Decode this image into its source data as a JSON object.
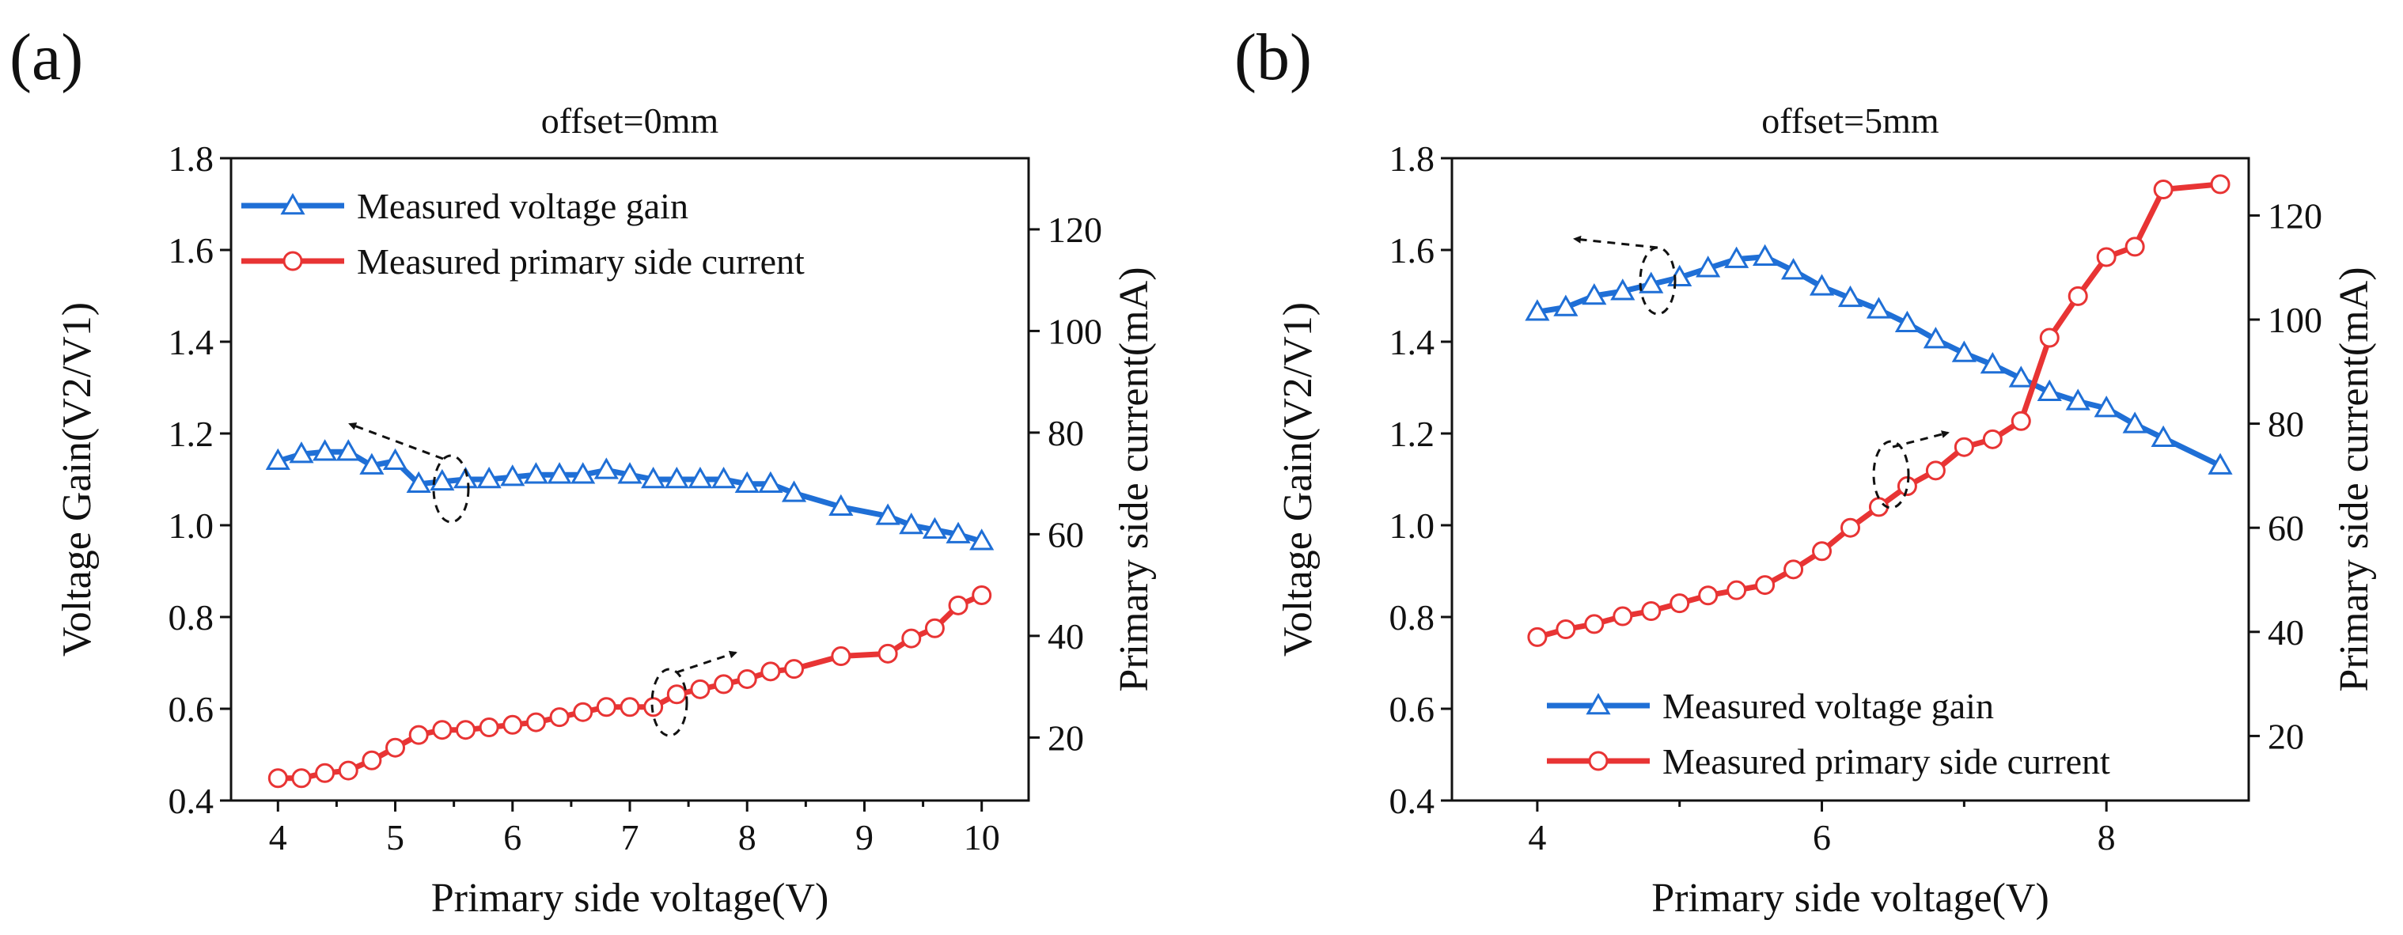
{
  "chart_data": [
    {
      "type": "line",
      "panel_label": "(a)",
      "title": "offset=0mm",
      "xlabel": "Primary side voltage(V)",
      "ylabel_left": "Voltage Gain(V2/V1)",
      "ylabel_right": "Primary side current(mA)",
      "xlim": [
        3.6,
        10.4
      ],
      "ylim_left": [
        0.4,
        1.8
      ],
      "ylim_right": [
        7.6,
        134
      ],
      "xticks": [
        4,
        5,
        6,
        7,
        8,
        9,
        10
      ],
      "yticks_left": [
        0.4,
        0.6,
        0.8,
        1.0,
        1.2,
        1.4,
        1.6,
        1.8
      ],
      "yticks_right": [
        20,
        40,
        60,
        80,
        100,
        120
      ],
      "legend_position": "top-left",
      "series": [
        {
          "name": "Measured voltage gain",
          "axis": "left",
          "color": "#1f6fd6",
          "marker": "triangle",
          "x": [
            4.0,
            4.2,
            4.4,
            4.6,
            4.8,
            5.0,
            5.2,
            5.4,
            5.6,
            5.8,
            6.0,
            6.2,
            6.4,
            6.6,
            6.8,
            7.0,
            7.2,
            7.4,
            7.6,
            7.8,
            8.0,
            8.2,
            8.4,
            8.8,
            9.2,
            9.4,
            9.6,
            9.8,
            10.0
          ],
          "y": [
            1.14,
            1.155,
            1.16,
            1.16,
            1.13,
            1.14,
            1.09,
            1.095,
            1.1,
            1.1,
            1.105,
            1.11,
            1.11,
            1.11,
            1.12,
            1.11,
            1.1,
            1.1,
            1.1,
            1.1,
            1.09,
            1.09,
            1.07,
            1.04,
            1.02,
            1.0,
            0.99,
            0.98,
            0.965
          ]
        },
        {
          "name": "Measured primary side current",
          "axis": "right",
          "color": "#e83434",
          "marker": "circle",
          "x": [
            4.0,
            4.2,
            4.4,
            4.6,
            4.8,
            5.0,
            5.2,
            5.4,
            5.6,
            5.8,
            6.0,
            6.2,
            6.4,
            6.6,
            6.8,
            7.0,
            7.2,
            7.4,
            7.6,
            7.8,
            8.0,
            8.2,
            8.4,
            8.8,
            9.2,
            9.4,
            9.6,
            9.8,
            10.0
          ],
          "y": [
            12,
            12,
            13,
            13.5,
            15.5,
            18,
            20.5,
            21.5,
            21.5,
            22,
            22.5,
            23,
            24,
            25,
            26,
            26,
            26,
            28.5,
            29.5,
            30.5,
            31.5,
            33,
            33.5,
            36,
            36.5,
            39.5,
            41.5,
            46,
            48
          ]
        }
      ],
      "annotations": [
        "dashed ellipse with arrow pointing left near x=5.5 (gain axis)",
        "dashed ellipse with arrow pointing right near x=7.3 (current axis)"
      ]
    },
    {
      "type": "line",
      "panel_label": "(b)",
      "title": "offset=5mm",
      "xlabel": "Primary side voltage(V)",
      "ylabel_left": "Voltage Gain(V2/V1)",
      "ylabel_right": "Primary side current(mA)",
      "xlim": [
        3.4,
        9.0
      ],
      "ylim_left": [
        0.4,
        1.8
      ],
      "ylim_right": [
        7.6,
        131
      ],
      "xticks": [
        4,
        6,
        8
      ],
      "yticks_left": [
        0.4,
        0.6,
        0.8,
        1.0,
        1.2,
        1.4,
        1.6,
        1.8
      ],
      "yticks_right": [
        20,
        40,
        60,
        80,
        100,
        120
      ],
      "legend_position": "bottom-left",
      "series": [
        {
          "name": "Measured voltage gain",
          "axis": "left",
          "color": "#1f6fd6",
          "marker": "triangle",
          "x": [
            4.0,
            4.2,
            4.4,
            4.6,
            4.8,
            5.0,
            5.2,
            5.4,
            5.6,
            5.8,
            6.0,
            6.2,
            6.4,
            6.6,
            6.8,
            7.0,
            7.2,
            7.4,
            7.6,
            7.8,
            8.0,
            8.2,
            8.4,
            8.8
          ],
          "y": [
            1.465,
            1.475,
            1.5,
            1.51,
            1.525,
            1.54,
            1.56,
            1.58,
            1.585,
            1.555,
            1.52,
            1.495,
            1.47,
            1.44,
            1.405,
            1.375,
            1.35,
            1.32,
            1.29,
            1.27,
            1.255,
            1.22,
            1.19,
            1.13
          ]
        },
        {
          "name": "Measured primary side current",
          "axis": "right",
          "color": "#e83434",
          "marker": "circle",
          "x": [
            4.0,
            4.2,
            4.4,
            4.6,
            4.8,
            5.0,
            5.2,
            5.4,
            5.6,
            5.8,
            6.0,
            6.2,
            6.4,
            6.6,
            6.8,
            7.0,
            7.2,
            7.4,
            7.6,
            7.8,
            8.0,
            8.2,
            8.4,
            8.8
          ],
          "y": [
            39,
            40.5,
            41.5,
            43,
            44,
            45.5,
            47,
            48,
            49,
            52,
            55.5,
            60,
            64,
            68,
            71,
            75.5,
            77,
            80.5,
            96.5,
            104.5,
            112,
            114,
            125,
            126
          ]
        }
      ],
      "annotations": [
        "dashed ellipse with arrow pointing left near x=5.1 (gain axis)",
        "dashed ellipse with arrow pointing right near x=6.6 (current axis)"
      ]
    }
  ]
}
